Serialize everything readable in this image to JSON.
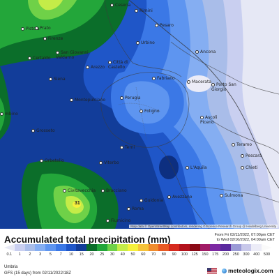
{
  "map": {
    "cities": [
      {
        "id": "cesena",
        "name": "Cesena"
      },
      {
        "id": "rimini",
        "name": "Rimini"
      },
      {
        "id": "pistoia",
        "name": "Pistoia"
      },
      {
        "id": "prato",
        "name": "Prato"
      },
      {
        "id": "firenze",
        "name": "Firenze"
      },
      {
        "id": "pesaro",
        "name": "Pesaro"
      },
      {
        "id": "urbino",
        "name": "Urbino"
      },
      {
        "id": "san_giovanni",
        "name": "San Giovanni\nValdarno"
      },
      {
        "id": "certaldo",
        "name": "Certaldo"
      },
      {
        "id": "ancona",
        "name": "Ancona"
      },
      {
        "id": "arezzo",
        "name": "Arezzo"
      },
      {
        "id": "citta_castello",
        "name": "Città di\nCastello"
      },
      {
        "id": "siena",
        "name": "Siena"
      },
      {
        "id": "fabriano",
        "name": "Fabriano"
      },
      {
        "id": "macerata",
        "name": "Macerata"
      },
      {
        "id": "porto_san_giorgio",
        "name": "Porto San\nGiorgio"
      },
      {
        "id": "perugia",
        "name": "Perugia"
      },
      {
        "id": "montepulciano",
        "name": "Montepulciano"
      },
      {
        "id": "piombino",
        "name": "mbino"
      },
      {
        "id": "foligno",
        "name": "Foligno"
      },
      {
        "id": "ascoli",
        "name": "Ascoli\nPiceno"
      },
      {
        "id": "grosseto",
        "name": "Grosseto"
      },
      {
        "id": "teramo",
        "name": "Teramo"
      },
      {
        "id": "terni",
        "name": "Terni"
      },
      {
        "id": "pescara",
        "name": "Pescara"
      },
      {
        "id": "orbetello",
        "name": "Orbetello"
      },
      {
        "id": "viterbo",
        "name": "Viterbo"
      },
      {
        "id": "laquila",
        "name": "L'Aquila"
      },
      {
        "id": "chieti",
        "name": "Chieti"
      },
      {
        "id": "civitavecchia",
        "name": "Civitavecchia"
      },
      {
        "id": "bracciano",
        "name": "Bracciano"
      },
      {
        "id": "roma",
        "name": "Roma"
      },
      {
        "id": "avezzano",
        "name": "Avezzano"
      },
      {
        "id": "sulmona",
        "name": "Sulmona"
      },
      {
        "id": "guidonia",
        "name": "Guidonia"
      },
      {
        "id": "fiumicino",
        "name": "Fiumicino"
      }
    ],
    "peak_value": "31",
    "attribution": "Map data © OpenStreetMap contributors, rendering GIScience Research Group @ Heidelberg University"
  },
  "header": {
    "title": "Accumulated total precipitation (mm)",
    "from_line": "From Fri 02/11/2022, 07:00pm CET",
    "to_line": "to Wed 02/16/2022, 04:00am CET"
  },
  "legend": {
    "labels": [
      "0.1",
      "1",
      "2",
      "3",
      "5",
      "7",
      "10",
      "15",
      "20",
      "25",
      "30",
      "40",
      "50",
      "60",
      "70",
      "80",
      "90",
      "100",
      "125",
      "150",
      "175",
      "200",
      "250",
      "300",
      "400",
      "500"
    ],
    "colors": [
      "#e6e8f5",
      "#c9cff0",
      "#a9bde9",
      "#85aef2",
      "#5e95f0",
      "#3b78e6",
      "#1f56c8",
      "#123d9a",
      "#0b6e2a",
      "#23a63a",
      "#6fd148",
      "#c4ec48",
      "#f5f03c",
      "#f5c33a",
      "#f08c2d",
      "#e85a24",
      "#d62a1e",
      "#b3121c",
      "#8a0a16",
      "#a01b66",
      "#7d2aa3",
      "#5a2a9e",
      "#9a9ad6",
      "#c8c8ea",
      "#ececf7",
      "#fafafa"
    ]
  },
  "footer": {
    "region": "Umbria",
    "model": "GFS (15 days) from  02/11/2022/18Z",
    "brand": "meteologix.com"
  }
}
